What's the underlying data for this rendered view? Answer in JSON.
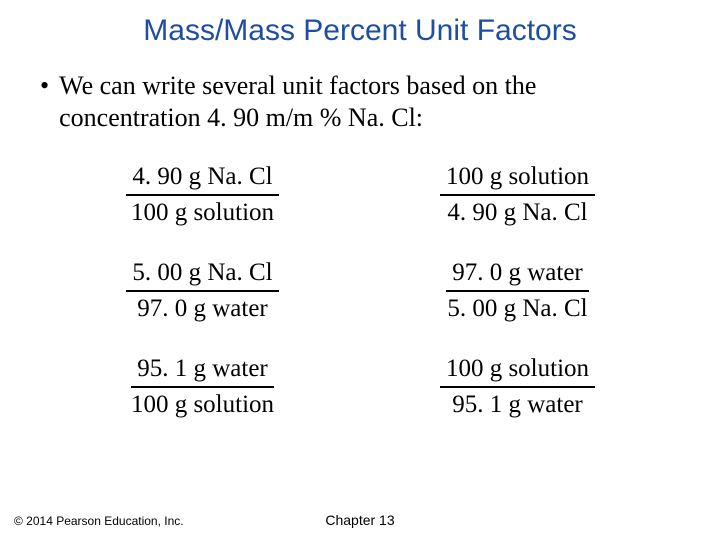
{
  "title": "Mass/Mass Percent Unit Factors",
  "bullet_marker": "•",
  "bullet_text": "We can write several unit factors based on the concentration 4. 90 m/m % Na. Cl:",
  "fractions": [
    {
      "num": "4. 90 g Na. Cl",
      "den": "100 g solution"
    },
    {
      "num": "100 g solution",
      "den": "4. 90 g Na. Cl"
    },
    {
      "num": "5. 00 g Na. Cl",
      "den": "97. 0 g water"
    },
    {
      "num": "97. 0 g water",
      "den": "5. 00 g Na. Cl"
    },
    {
      "num": "95. 1 g water",
      "den": "100 g solution"
    },
    {
      "num": "100 g solution",
      "den": "95. 1 g water"
    }
  ],
  "footer_left": "© 2014 Pearson Education, Inc.",
  "footer_center": "Chapter 13",
  "colors": {
    "title": "#1f4ea1",
    "text": "#000000",
    "background": "#ffffff"
  }
}
